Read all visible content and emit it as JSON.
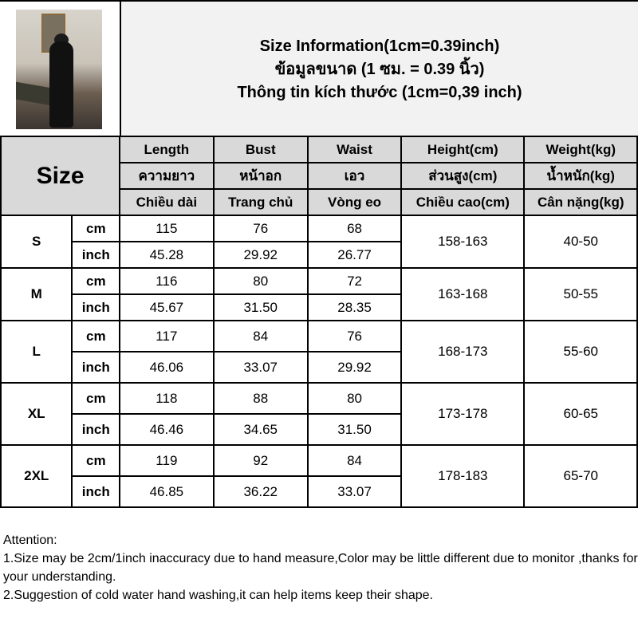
{
  "title": {
    "line1": "Size Information(1cm=0.39inch)",
    "line2": "ข้อมูลขนาด (1 ซม. = 0.39 นิ้ว)",
    "line3": "Thông tin kích thước (1cm=0,39 inch)"
  },
  "header": {
    "size_label": "Size",
    "columns": [
      {
        "en": "Length",
        "th": "ความยาว",
        "vi": "Chiều dài"
      },
      {
        "en": "Bust",
        "th": "หน้าอก",
        "vi": "Trang chủ"
      },
      {
        "en": "Waist",
        "th": "เอว",
        "vi": "Vòng eo"
      },
      {
        "en": "Height(cm)",
        "th": "ส่วนสูง(cm)",
        "vi": "Chiều cao(cm)"
      },
      {
        "en": "Weight(kg)",
        "th": "น้ำหนัก(kg)",
        "vi": "Cân nặng(kg)"
      }
    ]
  },
  "units": {
    "cm": "cm",
    "inch": "inch"
  },
  "sizes": [
    {
      "size": "S",
      "cm": [
        "115",
        "76",
        "68"
      ],
      "inch": [
        "45.28",
        "29.92",
        "26.77"
      ],
      "height": "158-163",
      "weight": "40-50"
    },
    {
      "size": "M",
      "cm": [
        "116",
        "80",
        "72"
      ],
      "inch": [
        "45.67",
        "31.50",
        "28.35"
      ],
      "height": "163-168",
      "weight": "50-55"
    },
    {
      "size": "L",
      "cm": [
        "117",
        "84",
        "76"
      ],
      "inch": [
        "46.06",
        "33.07",
        "29.92"
      ],
      "height": "168-173",
      "weight": "55-60"
    },
    {
      "size": "XL",
      "cm": [
        "118",
        "88",
        "80"
      ],
      "inch": [
        "46.46",
        "34.65",
        "31.50"
      ],
      "height": "173-178",
      "weight": "60-65"
    },
    {
      "size": "2XL",
      "cm": [
        "119",
        "92",
        "84"
      ],
      "inch": [
        "46.85",
        "36.22",
        "33.07"
      ],
      "height": "178-183",
      "weight": "65-70"
    }
  ],
  "notes": {
    "heading": "Attention:",
    "line1": "1.Size may be 2cm/1inch inaccuracy due to hand measure,Color may be little different due to monitor ,thanks for your understanding.",
    "line2": "2.Suggestion of cold water hand washing,it can help items keep their shape."
  }
}
